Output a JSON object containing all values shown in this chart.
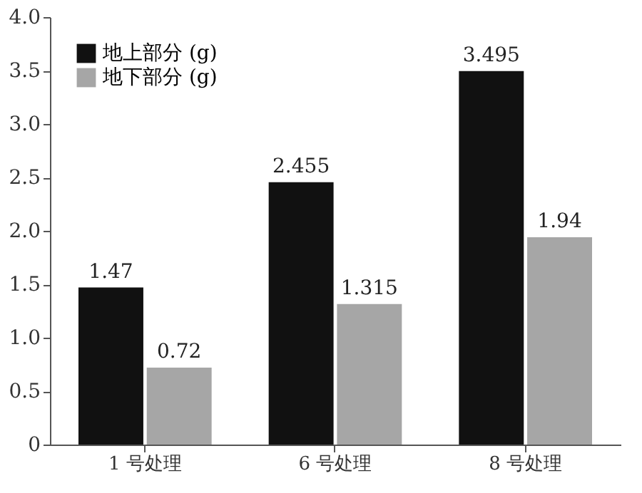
{
  "chart_data": {
    "type": "bar",
    "categories": [
      "1 号处理",
      "6 号处理",
      "8 号处理"
    ],
    "series": [
      {
        "name": "地上部分 (g)",
        "color": "#111111",
        "values": [
          1.47,
          2.455,
          3.495
        ]
      },
      {
        "name": "地下部分 (g)",
        "color": "#a6a6a6",
        "values": [
          0.72,
          1.315,
          1.94
        ]
      }
    ],
    "ylim": [
      0,
      4
    ],
    "yticks": [
      0,
      0.5,
      {
        "value": 1,
        "label": "1.0"
      },
      1.5,
      {
        "value": 2,
        "label": "2.0"
      },
      2.5,
      {
        "value": 3,
        "label": "3.0"
      },
      3.5,
      {
        "value": 4,
        "label": "4.0"
      }
    ],
    "data_labels": true,
    "grid": false,
    "legend": "top left"
  }
}
